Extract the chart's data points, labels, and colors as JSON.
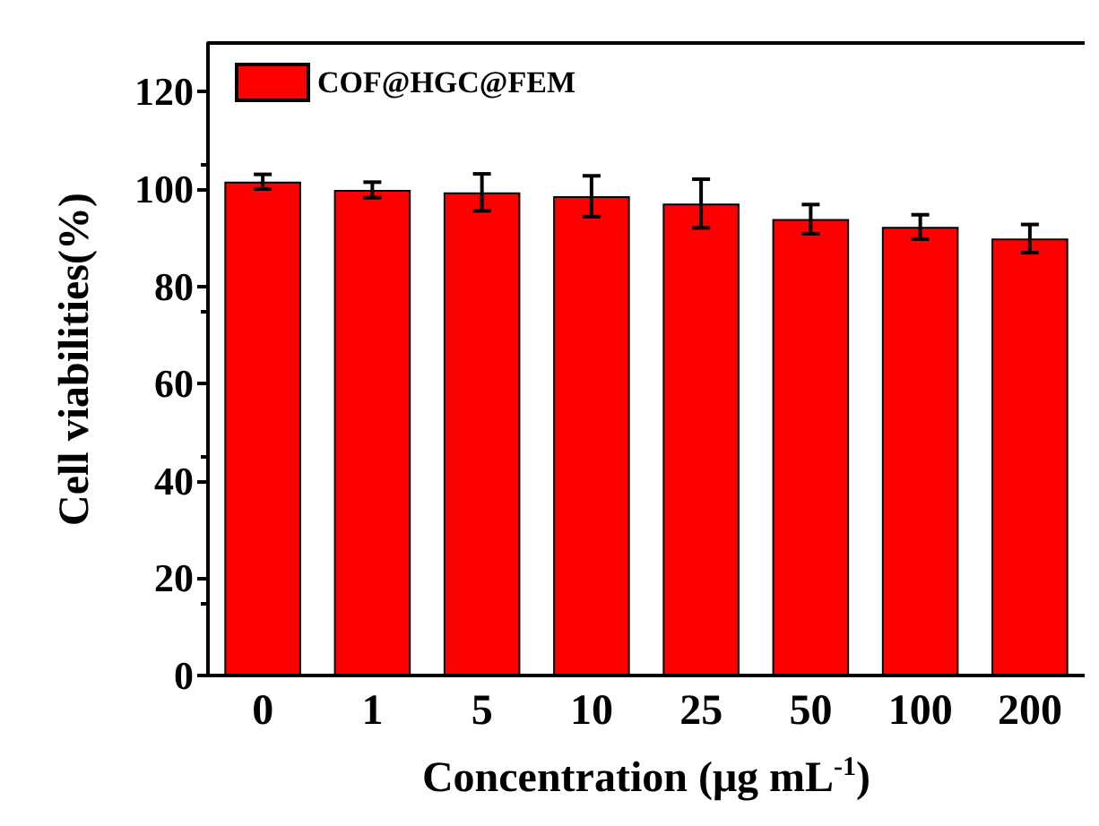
{
  "chart_data": {
    "type": "bar",
    "xlabel": "Concentration (μg mL$^{-1}$)",
    "ylabel": "Cell viabilities(%)",
    "categories": [
      "0",
      "1",
      "5",
      "10",
      "25",
      "50",
      "100",
      "200"
    ],
    "series": [
      {
        "name": "COF@HGC@FEM",
        "color": "#ff0000",
        "values": [
          101.5,
          99.8,
          99.3,
          98.5,
          97,
          93.8,
          92.2,
          89.8
        ],
        "errors": [
          1.5,
          1.6,
          3.8,
          4.2,
          5,
          3,
          2.5,
          2.9
        ]
      }
    ],
    "ylim": [
      0,
      130
    ],
    "yticks": [
      0,
      20,
      40,
      60,
      80,
      100,
      120
    ],
    "grid": false,
    "legend": "top left"
  }
}
